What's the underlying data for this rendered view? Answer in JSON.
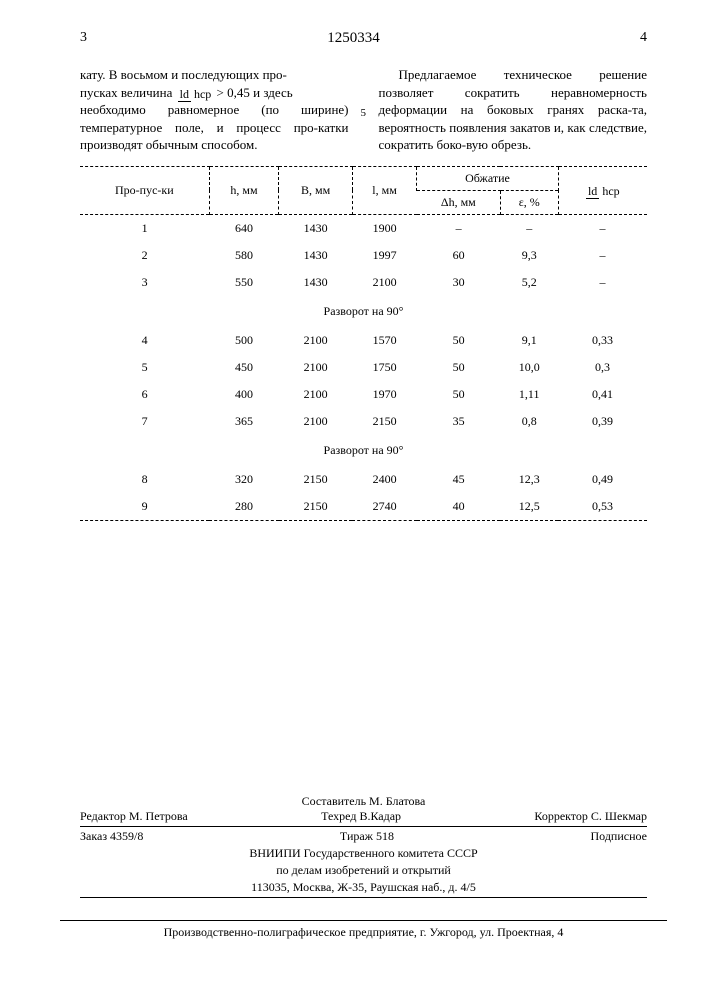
{
  "pageLeftNum": "3",
  "pageRightNum": "4",
  "docNumber": "1250334",
  "lineMarker": "5",
  "leftCol": {
    "part1": "кату. В восьмом и последующих про-",
    "part2a": "пусках величина ",
    "fracTop": "ld",
    "fracBot": "hср",
    "part2b": "> 0,45 и здесь",
    "part3": "необходимо равномерное (по ширине) температурное поле, и процесс про-катки производят обычным способом."
  },
  "rightCol": {
    "text": "Предлагаемое техническое решение позволяет сократить неравномерность деформации на боковых гранях раска-та, вероятность появления закатов и, как следствие, сократить боко-вую обрезь."
  },
  "table": {
    "headers": {
      "c1": "Про-пус-ки",
      "c2": "h, мм",
      "c3": "B, мм",
      "c4": "l, мм",
      "c5": "Обжатие",
      "c6top": "ld",
      "c6bot": "hср",
      "c5a": "Δh, мм",
      "c5b": "ε, %"
    },
    "sep1": "Разворот на 90°",
    "sep2": "Разворот на 90°",
    "rows1": [
      [
        "1",
        "640",
        "1430",
        "1900",
        "–",
        "–",
        "–"
      ],
      [
        "2",
        "580",
        "1430",
        "1997",
        "60",
        "9,3",
        "–"
      ],
      [
        "3",
        "550",
        "1430",
        "2100",
        "30",
        "5,2",
        "–"
      ]
    ],
    "rows2": [
      [
        "4",
        "500",
        "2100",
        "1570",
        "50",
        "9,1",
        "0,33"
      ],
      [
        "5",
        "450",
        "2100",
        "1750",
        "50",
        "10,0",
        "0,3"
      ],
      [
        "6",
        "400",
        "2100",
        "1970",
        "50",
        "1,11",
        "0,41"
      ],
      [
        "7",
        "365",
        "2100",
        "2150",
        "35",
        "0,8",
        "0,39"
      ]
    ],
    "rows3": [
      [
        "8",
        "320",
        "2150",
        "2400",
        "45",
        "12,3",
        "0,49"
      ],
      [
        "9",
        "280",
        "2150",
        "2740",
        "40",
        "12,5",
        "0,53"
      ]
    ]
  },
  "footer": {
    "compiler": "Составитель М. Блатова",
    "editor": "Редактор М. Петрова",
    "tech": "Техред В.Кадар",
    "corrector": "Корректор С. Шекмар",
    "order": "Заказ 4359/8",
    "tirage": "Тираж 518",
    "sub": "Подписное",
    "org1": "ВНИИПИ Государственного комитета СССР",
    "org2": "по делам изобретений и открытий",
    "addr": "113035, Москва, Ж-35, Раушская наб., д. 4/5"
  },
  "bottom": "Производственно-полиграфическое предприятие, г. Ужгород, ул. Проектная, 4"
}
